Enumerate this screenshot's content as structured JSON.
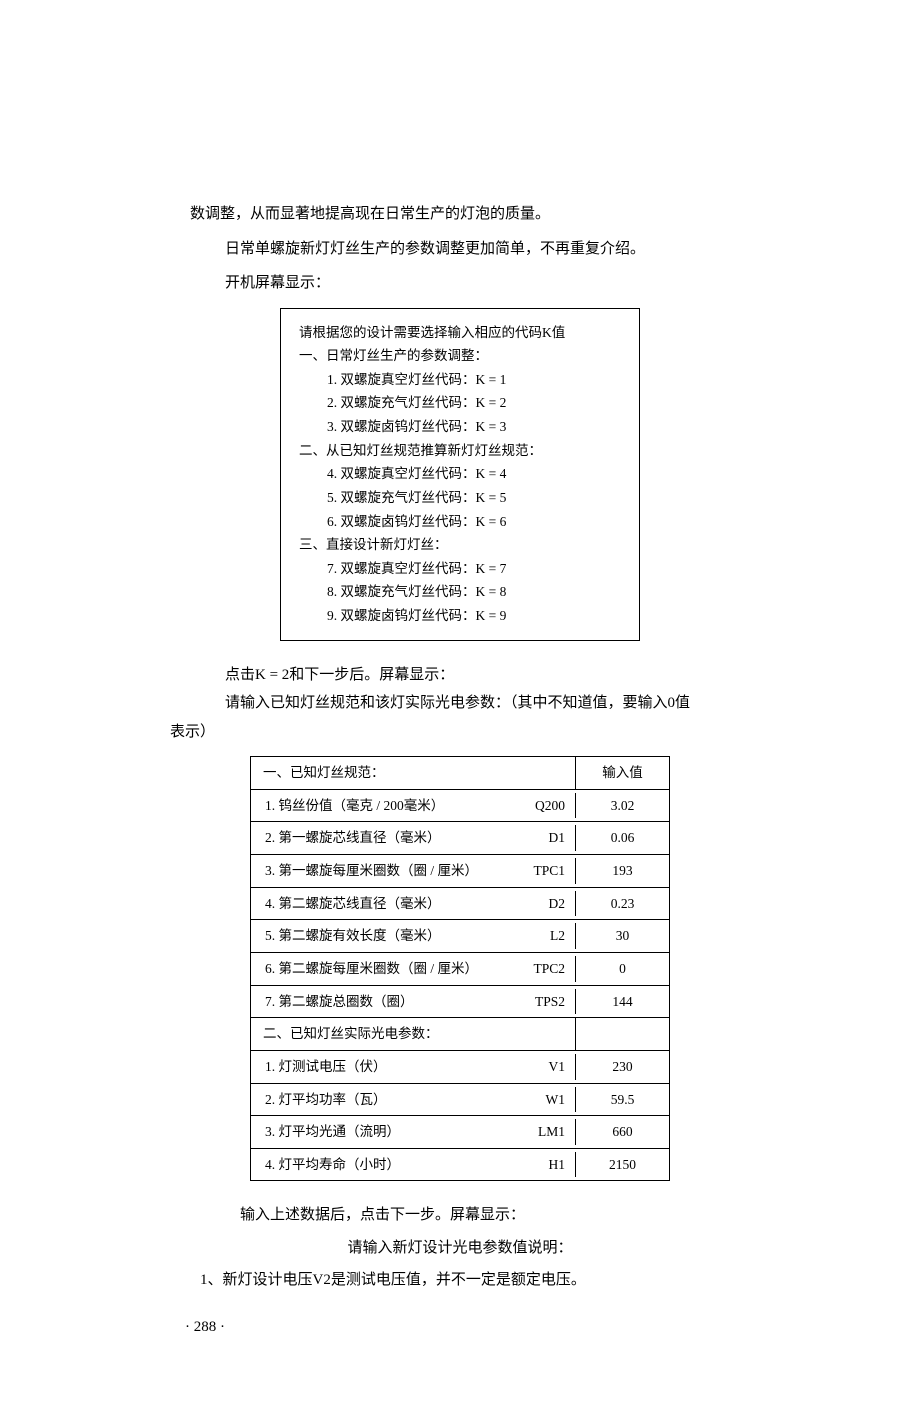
{
  "intro": {
    "line1": "数调整，从而显著地提高现在日常生产的灯泡的质量。",
    "line2": "日常单螺旋新灯灯丝生产的参数调整更加简单，不再重复介绍。",
    "line3": "开机屏幕显示："
  },
  "box1": {
    "title": "请根据您的设计需要选择输入相应的代码K值",
    "sections": [
      {
        "head": "一、日常灯丝生产的参数调整：",
        "items": [
          "1. 双螺旋真空灯丝代码：K = 1",
          "2. 双螺旋充气灯丝代码：K = 2",
          "3. 双螺旋卤钨灯丝代码：K = 3"
        ]
      },
      {
        "head": "二、从已知灯丝规范推算新灯灯丝规范：",
        "items": [
          "4. 双螺旋真空灯丝代码：K = 4",
          "5. 双螺旋充气灯丝代码：K = 5",
          "6. 双螺旋卤钨灯丝代码：K = 6"
        ]
      },
      {
        "head": "三、直接设计新灯灯丝：",
        "items": [
          "7. 双螺旋真空灯丝代码：K = 7",
          "8. 双螺旋充气灯丝代码：K = 8",
          "9. 双螺旋卤钨灯丝代码：K = 9"
        ]
      }
    ]
  },
  "after_box1": {
    "line1": "点击K = 2和下一步后。屏幕显示：",
    "line2": "请输入已知灯丝规范和该灯实际光电参数：（其中不知道值，要输入0值",
    "line3": "表示）"
  },
  "table": {
    "header_label": "一、已知灯丝规范：",
    "header_value": "输入值",
    "section1": [
      {
        "label": "1. 钨丝份值（毫克 / 200毫米）",
        "sym": "Q200",
        "val": "3.02"
      },
      {
        "label": "2. 第一螺旋芯线直径（毫米）",
        "sym": "D1",
        "val": "0.06"
      },
      {
        "label": "3. 第一螺旋每厘米圈数（圈 / 厘米）",
        "sym": "TPC1",
        "val": "193"
      },
      {
        "label": "4. 第二螺旋芯线直径（毫米）",
        "sym": "D2",
        "val": "0.23"
      },
      {
        "label": "5. 第二螺旋有效长度（毫米）",
        "sym": "L2",
        "val": "30"
      },
      {
        "label": "6. 第二螺旋每厘米圈数（圈 / 厘米）",
        "sym": "TPC2",
        "val": "0"
      },
      {
        "label": "7. 第二螺旋总圈数（圈）",
        "sym": "TPS2",
        "val": "144"
      }
    ],
    "section2_head": "二、已知灯丝实际光电参数：",
    "section2": [
      {
        "label": "1. 灯测试电压（伏）",
        "sym": "V1",
        "val": "230"
      },
      {
        "label": "2. 灯平均功率（瓦）",
        "sym": "W1",
        "val": "59.5"
      },
      {
        "label": "3. 灯平均光通（流明）",
        "sym": "LM1",
        "val": "660"
      },
      {
        "label": "4. 灯平均寿命（小时）",
        "sym": "H1",
        "val": "2150"
      }
    ]
  },
  "after_table": {
    "line1": "输入上述数据后，点击下一步。屏幕显示：",
    "line2": "请输入新灯设计光电参数值说明：",
    "line3": "1、新灯设计电压V2是测试电压值，并不一定是额定电压。"
  },
  "page_number": "· 288 ·"
}
